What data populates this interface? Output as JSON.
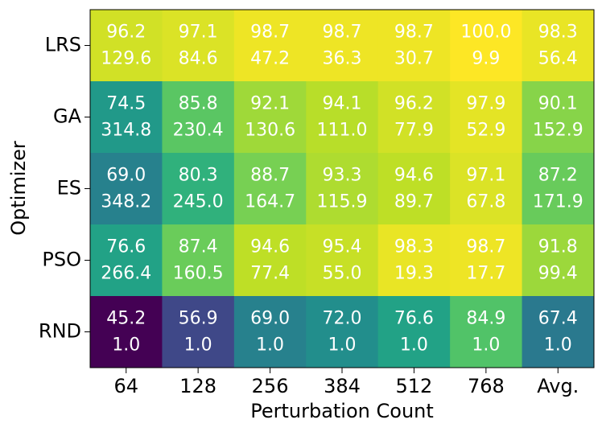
{
  "chart_data": {
    "type": "heatmap",
    "colormap": "viridis",
    "text_color": "#ffffff",
    "xlabel": "Perturbation Count",
    "ylabel": "Optimizer",
    "x": [
      "64",
      "128",
      "256",
      "384",
      "512",
      "768",
      "Avg."
    ],
    "y": [
      "LRS",
      "GA",
      "ES",
      "PSO",
      "RND"
    ],
    "values": [
      [
        96.2,
        97.1,
        98.7,
        98.7,
        98.7,
        100.0,
        98.3
      ],
      [
        74.5,
        85.8,
        92.1,
        94.1,
        96.2,
        97.9,
        90.1
      ],
      [
        69.0,
        80.3,
        88.7,
        93.3,
        94.6,
        97.1,
        87.2
      ],
      [
        76.6,
        87.4,
        94.6,
        95.4,
        98.3,
        98.7,
        91.8
      ],
      [
        45.2,
        56.9,
        69.0,
        72.0,
        76.6,
        84.9,
        67.4
      ]
    ],
    "value_labels": [
      [
        "96.2",
        "97.1",
        "98.7",
        "98.7",
        "98.7",
        "100.0",
        "98.3"
      ],
      [
        "74.5",
        "85.8",
        "92.1",
        "94.1",
        "96.2",
        "97.9",
        "90.1"
      ],
      [
        "69.0",
        "80.3",
        "88.7",
        "93.3",
        "94.6",
        "97.1",
        "87.2"
      ],
      [
        "76.6",
        "87.4",
        "94.6",
        "95.4",
        "98.3",
        "98.7",
        "91.8"
      ],
      [
        "45.2",
        "56.9",
        "69.0",
        "72.0",
        "76.6",
        "84.9",
        "67.4"
      ]
    ],
    "secondary_values": [
      [
        129.6,
        84.6,
        47.2,
        36.3,
        30.7,
        9.9,
        56.4
      ],
      [
        314.8,
        230.4,
        130.6,
        111.0,
        77.9,
        52.9,
        152.9
      ],
      [
        348.2,
        245.0,
        164.7,
        115.9,
        89.7,
        67.8,
        171.9
      ],
      [
        266.4,
        160.5,
        77.4,
        55.0,
        19.3,
        17.7,
        99.4
      ],
      [
        1.0,
        1.0,
        1.0,
        1.0,
        1.0,
        1.0,
        1.0
      ]
    ],
    "secondary_value_labels": [
      [
        "129.6",
        "84.6",
        "47.2",
        "36.3",
        "30.7",
        "9.9",
        "56.4"
      ],
      [
        "314.8",
        "230.4",
        "130.6",
        "111.0",
        "77.9",
        "52.9",
        "152.9"
      ],
      [
        "348.2",
        "245.0",
        "164.7",
        "115.9",
        "89.7",
        "67.8",
        "171.9"
      ],
      [
        "266.4",
        "160.5",
        "77.4",
        "55.0",
        "19.3",
        "17.7",
        "99.4"
      ],
      [
        "1.0",
        "1.0",
        "1.0",
        "1.0",
        "1.0",
        "1.0",
        "1.0"
      ]
    ]
  }
}
